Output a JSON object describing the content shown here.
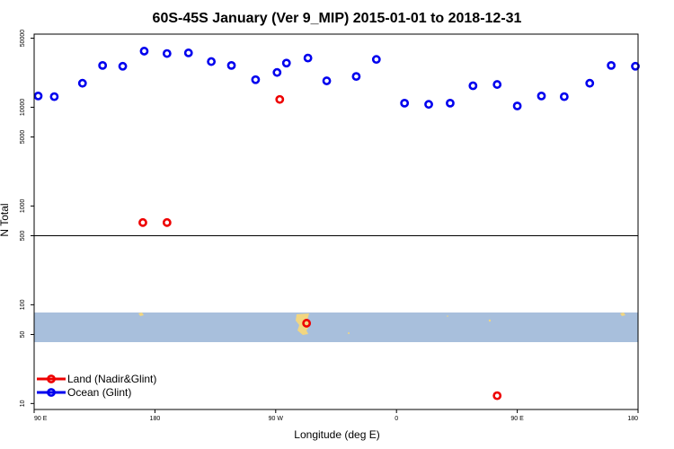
{
  "chart_data": {
    "type": "scatter",
    "title": "60S-45S January (Ver 9_MIP)   2015-01-01 to 2018-12-31",
    "xlabel": "Longitude (deg E)",
    "ylabel": "N Total",
    "x_scale": "longitude, 90E to 90E wrapping through 180",
    "y_scale": "log",
    "ylim": [
      8.7,
      55000
    ],
    "x_ticks": [
      {
        "lon": 90,
        "label": "90 E"
      },
      {
        "lon": 180,
        "label": "180"
      },
      {
        "lon": 270,
        "label": "90 W"
      },
      {
        "lon": 360,
        "label": "0"
      },
      {
        "lon": 450,
        "label": "90 E"
      },
      {
        "lon": 540,
        "label": "180"
      }
    ],
    "y_ticks": [
      {
        "value": 10,
        "label": "10"
      },
      {
        "value": 50,
        "label": "50"
      },
      {
        "value": 100,
        "label": "100"
      },
      {
        "value": 500,
        "label": "500"
      },
      {
        "value": 1000,
        "label": "1000"
      },
      {
        "value": 5000,
        "label": "5000"
      },
      {
        "value": 10000,
        "label": "10000"
      },
      {
        "value": 50000,
        "label": "50000"
      }
    ],
    "reference_line": 500,
    "map_band": {
      "lat_range": [
        "60S",
        "45S"
      ],
      "ocean_color": "#a8bfdc",
      "land_color": "#f2d680"
    },
    "legend_position": "bottom-left",
    "series": [
      {
        "name": "Land (Nadir&Glint)",
        "color": "#ee0000",
        "x": [
          -171,
          -87,
          -67,
          75,
          171
        ],
        "y": [
          680,
          12000,
          65,
          12,
          680
        ]
      },
      {
        "name": "Ocean (Glint)",
        "color": "#0000ee",
        "x": [
          93,
          105,
          126,
          141,
          156,
          172,
          189,
          205,
          222,
          237,
          255,
          271,
          278,
          294,
          308,
          330,
          345,
          366,
          384,
          400,
          417,
          435,
          450,
          468,
          485,
          504,
          520,
          538
        ],
        "y": [
          13000,
          12800,
          17500,
          26500,
          26000,
          37000,
          35000,
          35500,
          29000,
          26500,
          19000,
          22500,
          28000,
          31500,
          18500,
          20500,
          30500,
          11000,
          10700,
          11000,
          16500,
          17000,
          10300,
          13000,
          12800,
          17500,
          26500,
          26000
        ]
      }
    ]
  }
}
